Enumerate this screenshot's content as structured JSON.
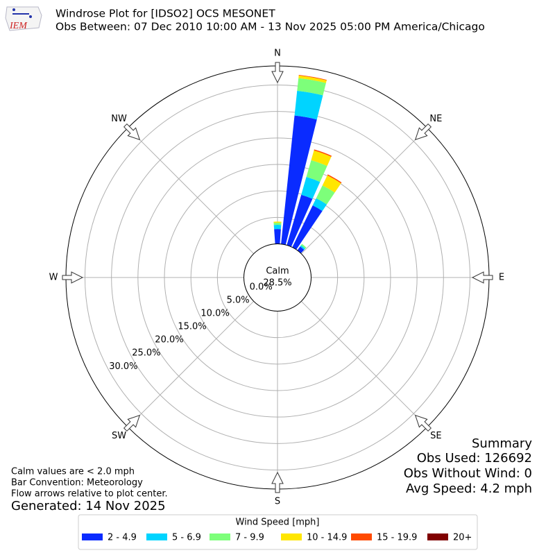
{
  "chart_data": {
    "type": "windrose",
    "title": "Windrose Plot for [IDSO2] OCS MESONET",
    "subtitle": "Obs Between: 07 Dec 2010 10:00 AM - 13 Nov 2025 05:00 PM America/Chicago",
    "calm": {
      "label": "Calm",
      "percent": "28.5%"
    },
    "directions": [
      0,
      10,
      20,
      30,
      40,
      50,
      60,
      70,
      80,
      90,
      100,
      110,
      120,
      130,
      140,
      150,
      160,
      170,
      180,
      190,
      200,
      210,
      220,
      230,
      240,
      250,
      260,
      270,
      280,
      290,
      300,
      310,
      320,
      330,
      340,
      350
    ],
    "theta_ticks": [
      {
        "value": 0,
        "label": "N"
      },
      {
        "value": 45,
        "label": "NE"
      },
      {
        "value": 90,
        "label": "E"
      },
      {
        "value": 135,
        "label": "SE"
      },
      {
        "value": 180,
        "label": "S"
      },
      {
        "value": 225,
        "label": "SW"
      },
      {
        "value": 270,
        "label": "W"
      },
      {
        "value": 315,
        "label": "NW"
      }
    ],
    "ylim": [
      0,
      33.6
    ],
    "yticks": [
      {
        "value": 0,
        "label": "0.0%"
      },
      {
        "value": 5,
        "label": "5.0%"
      },
      {
        "value": 10,
        "label": "10.0%"
      },
      {
        "value": 15,
        "label": "15.0%"
      },
      {
        "value": 20,
        "label": "20.0%"
      },
      {
        "value": 25,
        "label": "25.0%"
      },
      {
        "value": 30,
        "label": "30.0%"
      }
    ],
    "grid": true,
    "legend_title": "Wind Speed [mph]",
    "series": [
      {
        "name": "2 - 4.9",
        "color": "#0a2bff",
        "values": [
          2.8,
          24.4,
          9.9,
          8.8,
          0.9,
          0,
          0,
          0,
          0,
          0,
          0,
          0,
          0,
          0,
          0,
          0,
          0,
          0,
          0,
          0,
          0,
          0,
          0,
          0,
          0,
          0,
          0,
          0,
          0,
          0,
          0,
          0,
          0,
          0,
          0,
          0
        ]
      },
      {
        "name": "5 - 6.9",
        "color": "#00d4ff",
        "values": [
          0.8,
          4.7,
          3.5,
          1.5,
          0.3,
          0,
          0,
          0,
          0,
          0,
          0,
          0,
          0,
          0,
          0,
          0,
          0,
          0,
          0,
          0,
          0,
          0,
          0,
          0,
          0,
          0,
          0,
          0,
          0,
          0,
          0,
          0,
          0,
          0,
          0,
          0
        ]
      },
      {
        "name": "7 - 9.9",
        "color": "#7dff7a",
        "values": [
          0.4,
          2.4,
          3.3,
          2.7,
          0.3,
          0,
          0,
          0,
          0,
          0,
          0,
          0,
          0,
          0,
          0,
          0,
          0,
          0,
          0,
          0,
          0,
          0,
          0,
          0,
          0,
          0,
          0,
          0,
          0,
          0,
          0,
          0,
          0,
          0,
          0,
          0
        ]
      },
      {
        "name": "10 - 14.9",
        "color": "#ffe600",
        "values": [
          0.2,
          0.5,
          1.9,
          2.1,
          0,
          0,
          0,
          0,
          0,
          0,
          0,
          0,
          0,
          0,
          0,
          0,
          0,
          0,
          0,
          0,
          0,
          0,
          0,
          0,
          0,
          0,
          0,
          0,
          0,
          0,
          0,
          0,
          0,
          0,
          0,
          0
        ]
      },
      {
        "name": "15 - 19.9",
        "color": "#ff4a00",
        "values": [
          0,
          0.1,
          0.2,
          0.2,
          0,
          0,
          0,
          0,
          0,
          0,
          0,
          0,
          0,
          0,
          0,
          0,
          0,
          0,
          0,
          0,
          0,
          0,
          0,
          0,
          0,
          0,
          0,
          0,
          0,
          0,
          0,
          0,
          0,
          0,
          0,
          0
        ]
      },
      {
        "name": "20+",
        "color": "#800000",
        "values": [
          0,
          0,
          0,
          0,
          0,
          0,
          0,
          0,
          0,
          0,
          0,
          0,
          0,
          0,
          0,
          0,
          0,
          0,
          0,
          0,
          0,
          0,
          0,
          0,
          0,
          0,
          0,
          0,
          0,
          0,
          0,
          0,
          0,
          0,
          0,
          0
        ]
      }
    ],
    "summary": [
      "Summary",
      "Obs Used: 126692",
      "Obs Without Wind: 0",
      "Avg Speed: 4.2 mph"
    ],
    "notes": [
      "Calm values are < 2.0 mph",
      "Bar Convention: Meteorology",
      "Flow arrows relative to plot center."
    ],
    "generated": "Generated: 14 Nov 2025"
  }
}
